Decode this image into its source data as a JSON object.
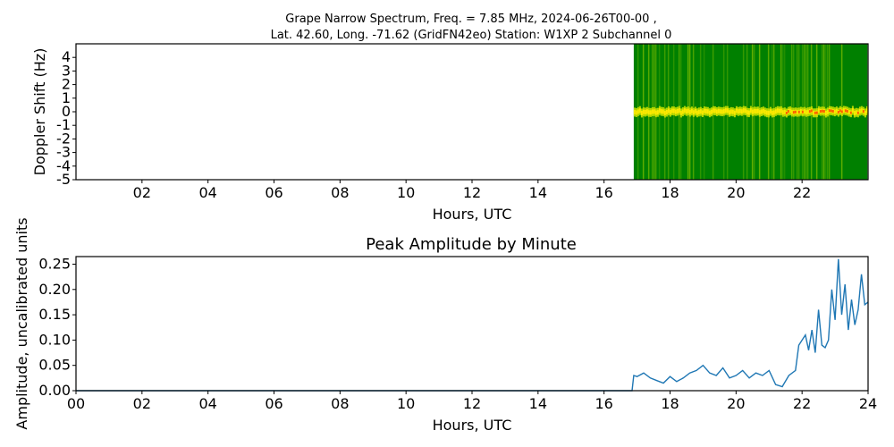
{
  "figure": {
    "title_line1": "Grape Narrow Spectrum, Freq. = 7.85 MHz, 2024-06-26T00-00 ,",
    "title_line2": "Lat.  42.60, Long. -71.62 (GridFN42eo) Station: W1XP 2 Subchannel 0"
  },
  "chart_data": [
    {
      "type": "heatmap",
      "title": "",
      "xlabel": "Hours, UTC",
      "ylabel": "Doppler Shift (Hz)",
      "xlim": [
        0,
        24
      ],
      "ylim": [
        -5,
        5
      ],
      "x_ticks": [
        2,
        4,
        6,
        8,
        10,
        12,
        14,
        16,
        18,
        20,
        22
      ],
      "x_tick_labels": [
        "02",
        "04",
        "06",
        "08",
        "10",
        "12",
        "14",
        "16",
        "18",
        "20",
        "22"
      ],
      "y_ticks": [
        4,
        3,
        2,
        1,
        0,
        -1,
        -2,
        -3,
        -4,
        -5
      ],
      "y_tick_labels": [
        "4",
        "3",
        "2",
        "1",
        "0",
        "-1",
        "-2",
        "-3",
        "-4",
        "-5"
      ],
      "data_start_hour": 16.9,
      "data_end_hour": 23.98,
      "colors": {
        "background": "#008000",
        "mid": "#c9e000",
        "peak": "#ffea00",
        "hot": "#ff3a00"
      }
    },
    {
      "type": "line",
      "title": "Peak Amplitude by Minute",
      "xlabel": "Hours, UTC",
      "ylabel": "Amplitude, uncalibrated units",
      "xlim": [
        0,
        24
      ],
      "ylim": [
        0,
        0.265
      ],
      "x_ticks": [
        0,
        2,
        4,
        6,
        8,
        10,
        12,
        14,
        16,
        18,
        20,
        22,
        24
      ],
      "x_tick_labels": [
        "00",
        "02",
        "04",
        "06",
        "08",
        "10",
        "12",
        "14",
        "16",
        "18",
        "20",
        "22",
        "24"
      ],
      "y_ticks": [
        0,
        0.05,
        0.1,
        0.15,
        0.2,
        0.25
      ],
      "y_tick_labels": [
        "0.00",
        "0.05",
        "0.10",
        "0.15",
        "0.20",
        "0.25"
      ],
      "line_color": "#1f77b4",
      "series": [
        {
          "x": [
            0,
            16.85,
            16.9,
            17.0,
            17.2,
            17.4,
            17.6,
            17.8,
            18.0,
            18.2,
            18.4,
            18.6,
            18.8,
            19.0,
            19.2,
            19.4,
            19.6,
            19.8,
            20.0,
            20.2,
            20.4,
            20.6,
            20.8,
            21.0,
            21.2,
            21.4,
            21.6,
            21.8,
            21.9,
            22.0,
            22.1,
            22.2,
            22.3,
            22.4,
            22.5,
            22.6,
            22.7,
            22.8,
            22.9,
            23.0,
            23.1,
            23.2,
            23.3,
            23.4,
            23.5,
            23.6,
            23.7,
            23.8,
            23.9,
            24.0
          ],
          "values": [
            0.0,
            0.0,
            0.03,
            0.028,
            0.035,
            0.025,
            0.02,
            0.015,
            0.028,
            0.018,
            0.025,
            0.035,
            0.04,
            0.05,
            0.035,
            0.03,
            0.045,
            0.025,
            0.03,
            0.04,
            0.025,
            0.035,
            0.03,
            0.04,
            0.012,
            0.008,
            0.03,
            0.04,
            0.09,
            0.1,
            0.11,
            0.08,
            0.12,
            0.075,
            0.16,
            0.09,
            0.085,
            0.1,
            0.2,
            0.14,
            0.26,
            0.15,
            0.21,
            0.12,
            0.18,
            0.13,
            0.16,
            0.23,
            0.17,
            0.175
          ]
        }
      ]
    }
  ]
}
